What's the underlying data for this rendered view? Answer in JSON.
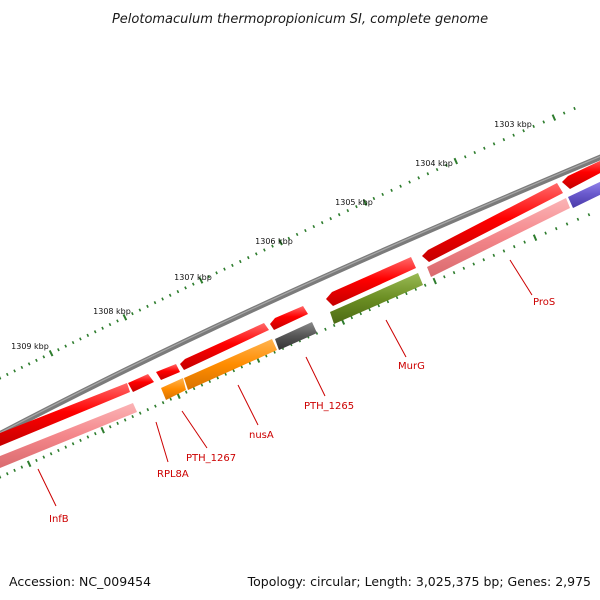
{
  "title": "Pelotomaculum thermopropionicum SI, complete genome",
  "footer": {
    "accession": "Accession: NC_009454",
    "summary": "Topology: circular; Length: 3,025,375 bp; Genes: 2,975"
  },
  "colors": {
    "backbone": "#7b7b7b",
    "tick": "#2e7d2e",
    "label": "#cc0000",
    "gene_forward": "#ff0000",
    "gene_reverse": "#f4868a",
    "gene_orange": "#ff8c00",
    "gene_gray": "#555555",
    "gene_olive": "#6b8e23",
    "gene_purple": "#6a5acd"
  },
  "scale": {
    "kbp_labels": [
      "1303 kbp",
      "1304 kbp",
      "1305 kbp",
      "1306 kbp",
      "1307 kbp",
      "1308 kbp",
      "1309 kbp"
    ]
  },
  "gene_labels": [
    "ProS",
    "MurG",
    "PTH_1265",
    "nusA",
    "PTH_1267",
    "RPL8A",
    "InfB"
  ]
}
